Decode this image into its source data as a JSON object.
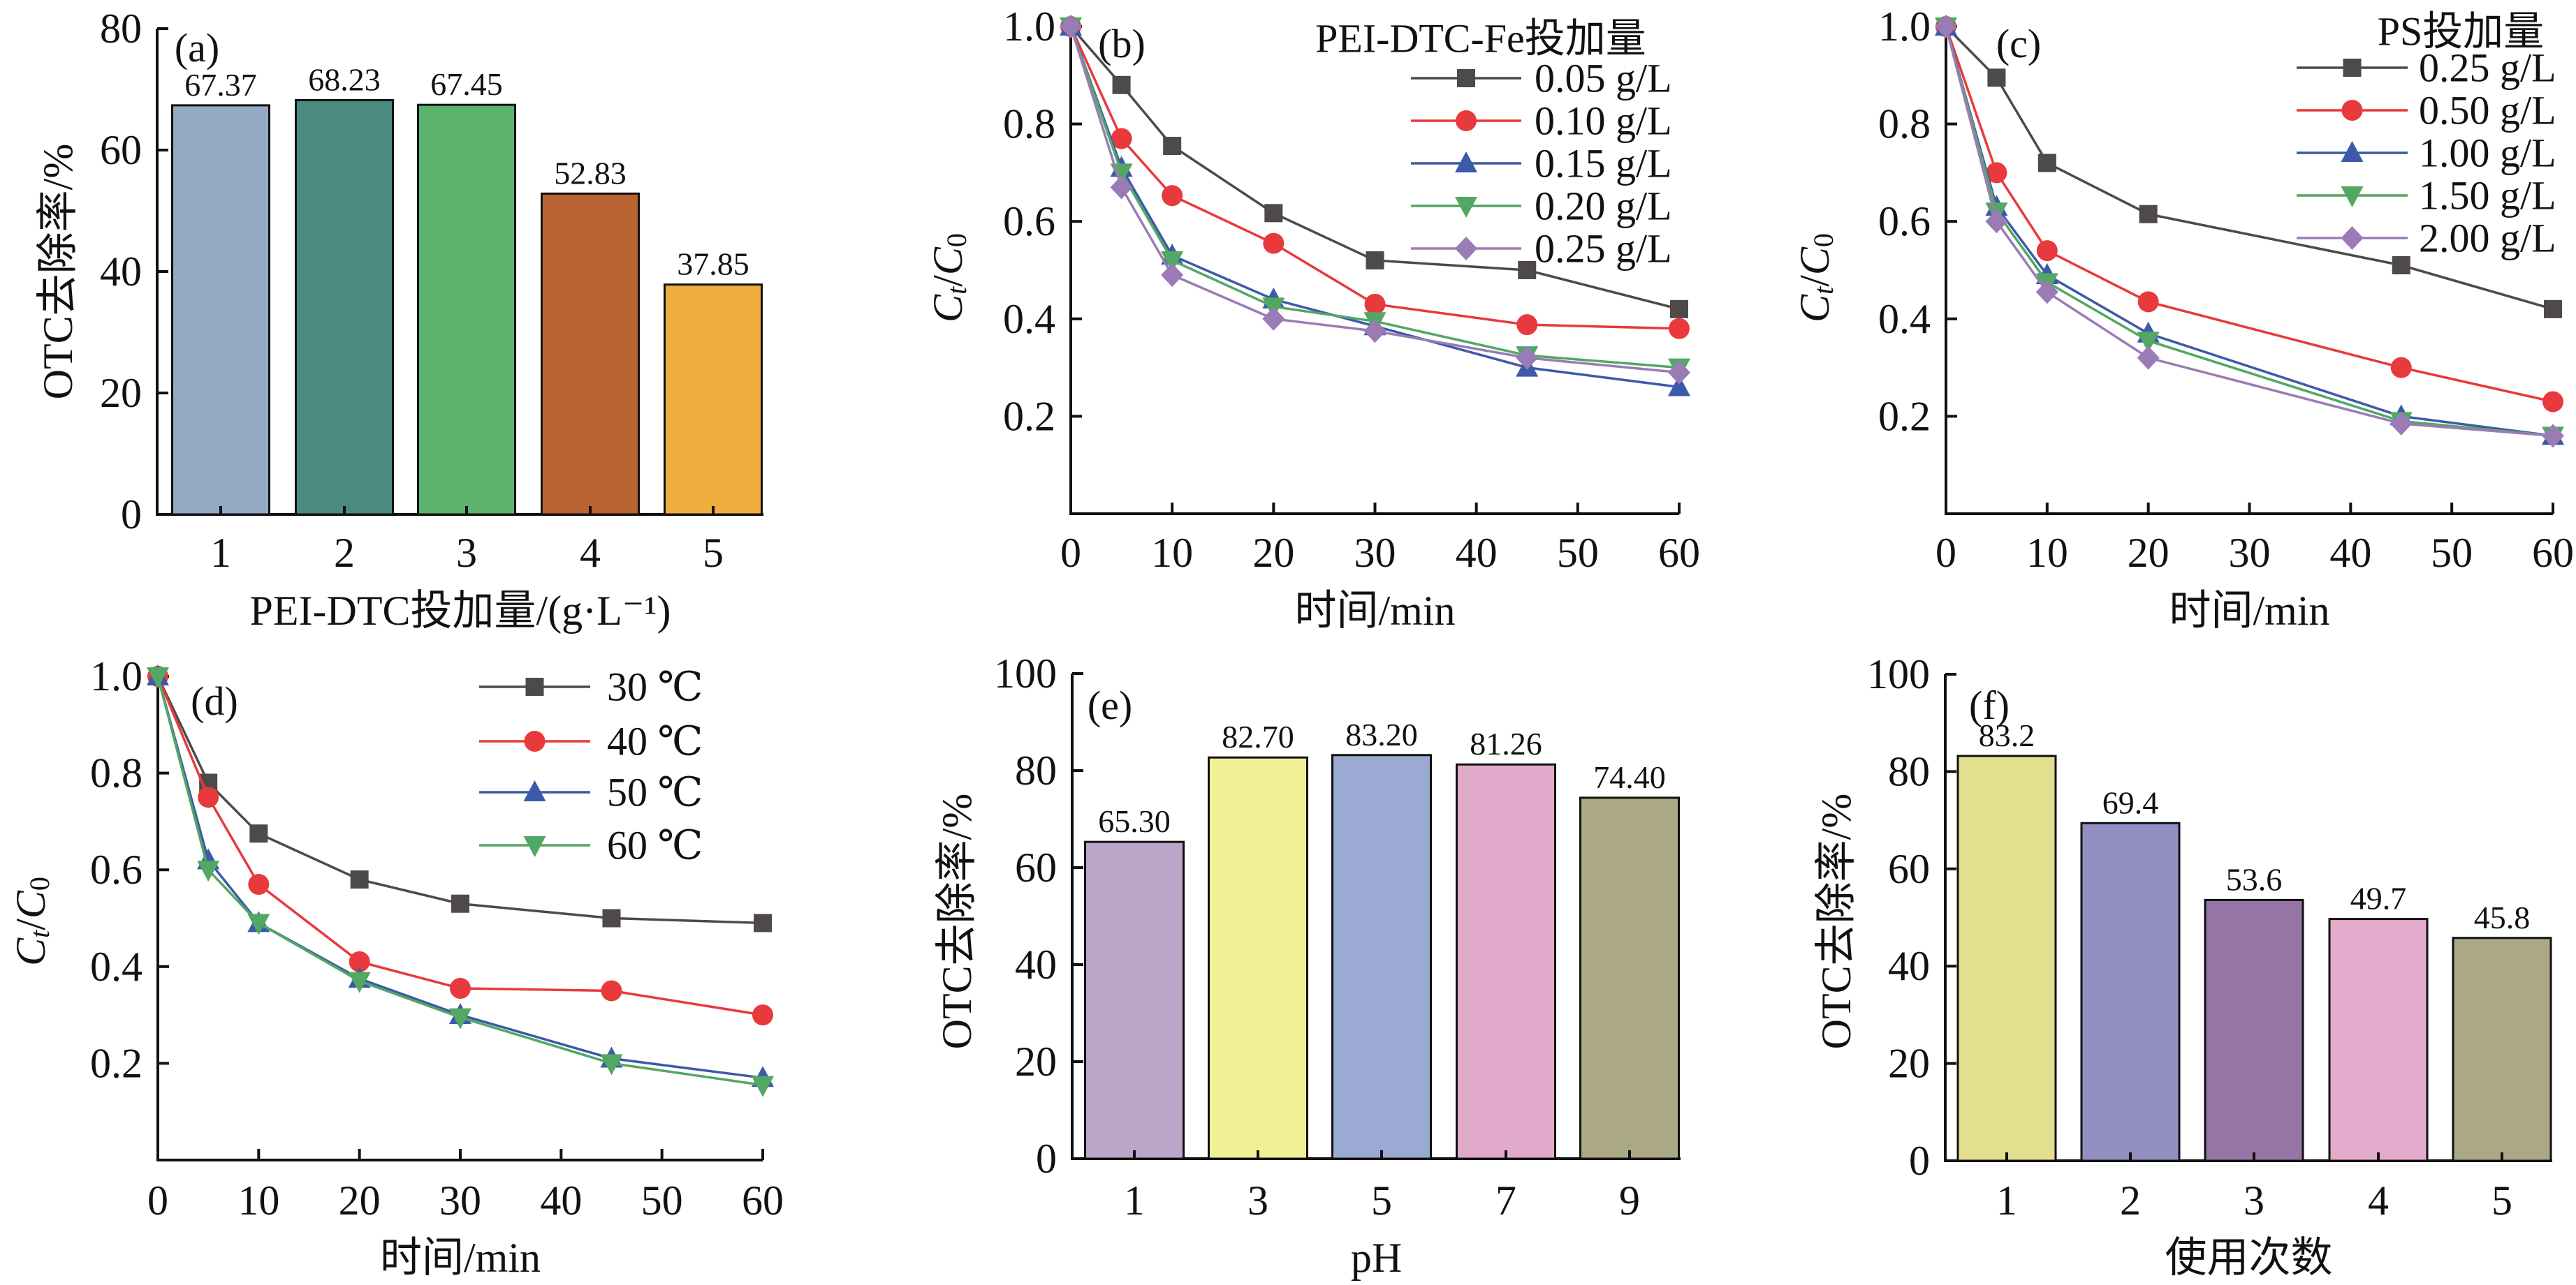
{
  "chart_data": [
    {
      "type": "bar",
      "panel_label": "(a)",
      "categories": [
        "1",
        "2",
        "3",
        "4",
        "5"
      ],
      "values": [
        67.37,
        68.23,
        67.45,
        52.83,
        37.85
      ],
      "labels": [
        "67.37",
        "68.23",
        "67.45",
        "52.83",
        "37.85"
      ],
      "colors": [
        "#94a9c2",
        "#4a8b80",
        "#5cb36d",
        "#b86331",
        "#f0ae40"
      ],
      "xlabel": "PEI-DTC投加量/(g·L⁻¹)",
      "ylabel": "OTC去除率/%",
      "ylim": [
        0,
        80
      ],
      "yticks": [
        "0",
        "20",
        "40",
        "60",
        "80"
      ]
    },
    {
      "type": "line",
      "panel_label": "(b)",
      "legend_title": "PEI-DTC-Fe投加量",
      "legend_position": "top-right",
      "x": [
        0,
        5,
        10,
        20,
        30,
        45,
        60
      ],
      "series": [
        {
          "name": "0.05 g/L",
          "marker": "square",
          "color": "#4d4a49",
          "values": [
            1.0,
            0.88,
            0.755,
            0.617,
            0.52,
            0.5,
            0.42
          ]
        },
        {
          "name": "0.10 g/L",
          "marker": "circle",
          "color": "#e8393d",
          "values": [
            1.0,
            0.77,
            0.653,
            0.555,
            0.43,
            0.388,
            0.38
          ]
        },
        {
          "name": "0.15 g/L",
          "marker": "triangle-up",
          "color": "#3d5aa8",
          "values": [
            1.0,
            0.71,
            0.53,
            0.44,
            0.385,
            0.3,
            0.26
          ]
        },
        {
          "name": "0.20 g/L",
          "marker": "triangle-down",
          "color": "#52a763",
          "values": [
            1.0,
            0.7,
            0.52,
            0.425,
            0.395,
            0.325,
            0.3
          ]
        },
        {
          "name": "0.25 g/L",
          "marker": "diamond",
          "color": "#9b7bb5",
          "values": [
            1.0,
            0.67,
            0.49,
            0.4,
            0.375,
            0.32,
            0.29
          ]
        }
      ],
      "xlabel": "时间/min",
      "ylabel": {
        "c1": "C",
        "s1": "t",
        "sep": "/",
        "c2": "C",
        "s2": "0"
      },
      "xlim": [
        0,
        60
      ],
      "ylim": [
        0,
        1.0
      ],
      "xticks": [
        "0",
        "10",
        "20",
        "30",
        "40",
        "50",
        "60"
      ],
      "yticks": [
        "0.2",
        "0.4",
        "0.6",
        "0.8",
        "1.0"
      ]
    },
    {
      "type": "line",
      "panel_label": "(c)",
      "legend_title": "PS投加量",
      "legend_position": "top-right",
      "x": [
        0,
        5,
        10,
        20,
        45,
        60
      ],
      "series": [
        {
          "name": "0.25 g/L",
          "marker": "square",
          "color": "#4d4a49",
          "values": [
            1.0,
            0.895,
            0.72,
            0.615,
            0.51,
            0.42
          ]
        },
        {
          "name": "0.50 g/L",
          "marker": "circle",
          "color": "#e8393d",
          "values": [
            1.0,
            0.7,
            0.54,
            0.435,
            0.3,
            0.23
          ]
        },
        {
          "name": "1.00 g/L",
          "marker": "triangle-up",
          "color": "#3d5aa8",
          "values": [
            1.0,
            0.63,
            0.49,
            0.37,
            0.2,
            0.16
          ]
        },
        {
          "name": "1.50 g/L",
          "marker": "triangle-down",
          "color": "#52a763",
          "values": [
            1.0,
            0.62,
            0.475,
            0.355,
            0.19,
            0.16
          ]
        },
        {
          "name": "2.00 g/L",
          "marker": "diamond",
          "color": "#9b7bb5",
          "values": [
            1.0,
            0.6,
            0.455,
            0.32,
            0.185,
            0.16
          ]
        }
      ],
      "xlabel": "时间/min",
      "ylabel": {
        "c1": "C",
        "s1": "t",
        "sep": "/",
        "c2": "C",
        "s2": "0"
      },
      "xlim": [
        0,
        60
      ],
      "ylim": [
        0,
        1.0
      ],
      "xticks": [
        "0",
        "10",
        "20",
        "30",
        "40",
        "50",
        "60"
      ],
      "yticks": [
        "0.2",
        "0.4",
        "0.6",
        "0.8",
        "1.0"
      ]
    },
    {
      "type": "line",
      "panel_label": "(d)",
      "legend_title": "",
      "legend_position": "top-right",
      "x": [
        0,
        5,
        10,
        20,
        30,
        45,
        60
      ],
      "series": [
        {
          "name": "30 ℃",
          "marker": "square",
          "color": "#4d4a49",
          "values": [
            1.0,
            0.78,
            0.675,
            0.58,
            0.53,
            0.5,
            0.49
          ]
        },
        {
          "name": "40 ℃",
          "marker": "circle",
          "color": "#e8393d",
          "values": [
            1.0,
            0.75,
            0.57,
            0.41,
            0.355,
            0.35,
            0.3
          ]
        },
        {
          "name": "50 ℃",
          "marker": "triangle-up",
          "color": "#3d5aa8",
          "values": [
            1.0,
            0.62,
            0.49,
            0.375,
            0.3,
            0.21,
            0.17
          ]
        },
        {
          "name": "60 ℃",
          "marker": "triangle-down",
          "color": "#52a763",
          "values": [
            1.0,
            0.6,
            0.49,
            0.37,
            0.295,
            0.2,
            0.155
          ]
        }
      ],
      "xlabel": "时间/min",
      "ylabel": {
        "c1": "C",
        "s1": "t",
        "sep": "/",
        "c2": "C",
        "s2": "0"
      },
      "xlim": [
        0,
        60
      ],
      "ylim": [
        0,
        1.0
      ],
      "xticks": [
        "0",
        "10",
        "20",
        "30",
        "40",
        "50",
        "60"
      ],
      "yticks": [
        "0.2",
        "0.4",
        "0.6",
        "0.8",
        "1.0"
      ]
    },
    {
      "type": "bar",
      "panel_label": "(e)",
      "categories": [
        "1",
        "3",
        "5",
        "7",
        "9"
      ],
      "values": [
        65.3,
        82.7,
        83.2,
        81.26,
        74.4
      ],
      "labels": [
        "65.30",
        "82.70",
        "83.20",
        "81.26",
        "74.40"
      ],
      "colors": [
        "#bda5c7",
        "#f2f097",
        "#9aaad2",
        "#e1aacb",
        "#aaa885"
      ],
      "xlabel": "pH",
      "ylabel": "OTC去除率/%",
      "ylim": [
        0,
        100
      ],
      "yticks": [
        "0",
        "20",
        "40",
        "60",
        "80",
        "100"
      ]
    },
    {
      "type": "bar",
      "panel_label": "(f)",
      "categories": [
        "1",
        "2",
        "3",
        "4",
        "5"
      ],
      "values": [
        83.2,
        69.4,
        53.6,
        49.7,
        45.8
      ],
      "labels": [
        "83.2",
        "69.4",
        "53.6",
        "49.7",
        "45.8"
      ],
      "colors": [
        "#e4df8e",
        "#918fbf",
        "#9475a6",
        "#e2aacb",
        "#aba886"
      ],
      "xlabel": "使用次数",
      "ylabel": "OTC去除率/%",
      "ylim": [
        0,
        100
      ],
      "yticks": [
        "0",
        "20",
        "40",
        "60",
        "80",
        "100"
      ]
    }
  ]
}
